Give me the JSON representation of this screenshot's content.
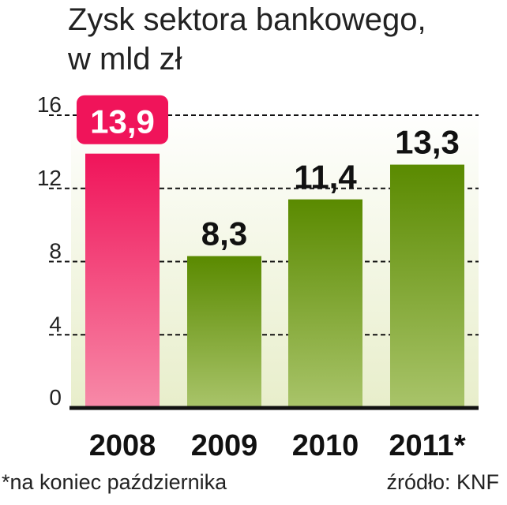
{
  "chart_data": {
    "type": "bar",
    "title_line1": "Zysk sektora bankowego,",
    "title_line2": "w mld zł",
    "categories": [
      "2008",
      "2009",
      "2010",
      "2011*"
    ],
    "values": [
      13.9,
      8.3,
      11.4,
      13.3
    ],
    "value_labels": [
      "13,9",
      "8,3",
      "11,4",
      "13,3"
    ],
    "highlight_index": 0,
    "yticks": [
      "0",
      "4",
      "8",
      "12",
      "16"
    ],
    "ylim": [
      0,
      16
    ],
    "grid": true,
    "footnote": "*na koniec października",
    "source": "źródło: KNF",
    "colors": {
      "highlight_top": "#f0145a",
      "highlight_bottom": "#f78aa8",
      "bar_top": "#5a8a00",
      "bar_bottom": "#a9c46a",
      "bg_top": "#ffffff",
      "bg_bottom": "#e8eecb",
      "label_bg": "#f0145a"
    }
  }
}
